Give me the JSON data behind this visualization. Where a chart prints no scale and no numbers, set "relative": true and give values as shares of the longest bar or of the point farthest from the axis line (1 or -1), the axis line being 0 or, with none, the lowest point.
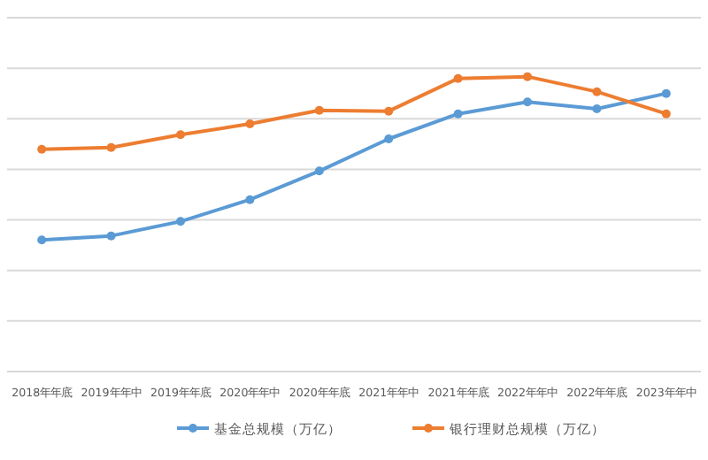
{
  "chart_data": {
    "type": "line",
    "relative": true,
    "grid": "y",
    "legend": "bottom",
    "marker": "circle",
    "line_style": "solid",
    "categories": [
      "2018年年底",
      "2019年年中",
      "2019年年底",
      "2020年年中",
      "2020年年底",
      "2021年年中",
      "2021年年底",
      "2022年年中",
      "2022年年底",
      "2023年年中"
    ],
    "series": [
      {
        "name": "基金总规模（万亿）",
        "color": "#5b9bd5",
        "values": [
          0.446,
          0.46,
          0.509,
          0.583,
          0.68,
          0.789,
          0.874,
          0.914,
          0.891,
          0.943
        ]
      },
      {
        "name": "银行理财总规模（万亿）",
        "color": "#ed7d31",
        "values": [
          0.754,
          0.76,
          0.803,
          0.84,
          0.886,
          0.883,
          0.994,
          1.0,
          0.949,
          0.874
        ]
      }
    ]
  }
}
